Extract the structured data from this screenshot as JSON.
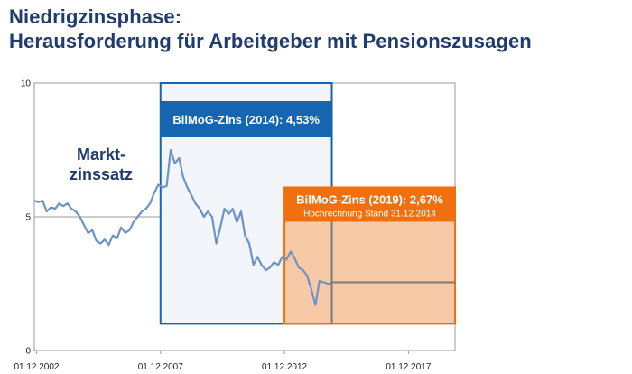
{
  "title_line1": "Niedrigzinsphase:",
  "title_line2": "Herausforderung für Arbeitgeber mit Pensionszusagen",
  "colors": {
    "title": "#1f3c6e",
    "line": "#6d93c6",
    "box2014_fill": "#f2f6fb",
    "box2014_border": "#1565b0",
    "box2019_fill": "#f8c9a6",
    "box2019_border": "#f07010",
    "projection_line": "#7a7a7a"
  },
  "chart_data": {
    "type": "line",
    "title": "",
    "xlabel": "",
    "ylabel": "",
    "ylim": [
      0,
      10
    ],
    "yticks": [
      0,
      5,
      10
    ],
    "ytick_labels": [
      "0",
      "5",
      "10"
    ],
    "xlim": [
      2002.83,
      2019.8
    ],
    "xticks": [
      2002.92,
      2007.92,
      2012.92,
      2017.92
    ],
    "xtick_labels": [
      "01.12.2002",
      "01.12.2007",
      "01.12.2012",
      "01.12.2017"
    ],
    "grid": "horizontal line at 5",
    "market_label": [
      "Markt-",
      "zinssatz"
    ],
    "series": [
      {
        "x": [
          2002.83,
          2003.0,
          2003.17,
          2003.33,
          2003.5,
          2003.67,
          2003.83,
          2004.0,
          2004.17,
          2004.33,
          2004.5,
          2004.67,
          2004.83,
          2005.0,
          2005.17,
          2005.33,
          2005.5,
          2005.67,
          2005.83,
          2006.0,
          2006.17,
          2006.33,
          2006.5,
          2006.67,
          2006.83,
          2007.0,
          2007.17,
          2007.33,
          2007.5,
          2007.67,
          2007.83,
          2008.0,
          2008.17,
          2008.33,
          2008.5,
          2008.67,
          2008.83,
          2009.0,
          2009.17,
          2009.33,
          2009.5,
          2009.67,
          2009.83,
          2010.0,
          2010.17,
          2010.33,
          2010.5,
          2010.67,
          2010.83,
          2011.0,
          2011.17,
          2011.33,
          2011.5,
          2011.67,
          2011.83,
          2012.0,
          2012.17,
          2012.33,
          2012.5,
          2012.67,
          2012.83,
          2013.0,
          2013.17,
          2013.33,
          2013.5,
          2013.67,
          2013.83,
          2014.0,
          2014.17,
          2014.33,
          2014.5,
          2014.67,
          2014.83
        ],
        "values": [
          5.6,
          5.55,
          5.6,
          5.2,
          5.35,
          5.3,
          5.5,
          5.4,
          5.5,
          5.3,
          5.2,
          5.0,
          4.7,
          4.4,
          4.5,
          4.1,
          4.0,
          4.15,
          3.95,
          4.3,
          4.2,
          4.6,
          4.4,
          4.5,
          4.8,
          5.0,
          5.2,
          5.3,
          5.5,
          5.9,
          6.2,
          6.1,
          6.15,
          7.5,
          7.0,
          7.2,
          6.5,
          6.1,
          5.8,
          5.5,
          5.3,
          5.0,
          5.2,
          5.0,
          4.0,
          4.6,
          5.3,
          5.1,
          5.3,
          4.8,
          5.2,
          4.3,
          4.0,
          3.2,
          3.5,
          3.2,
          3.0,
          3.1,
          3.3,
          3.2,
          3.5,
          3.4,
          3.7,
          3.45,
          3.1,
          3.0,
          2.8,
          2.3,
          1.7,
          2.6,
          2.55,
          2.5,
          2.5
        ]
      }
    ],
    "boxes": [
      {
        "label": "BilMoG-Zins (2014): 4,53%",
        "x_from": 2007.92,
        "x_to": 2014.83,
        "y_from": 1.0,
        "y_top": 10.0
      },
      {
        "label": "BilMoG-Zins (2019): 2,67%",
        "sublabel": "Hochrechnung Stand 31.12.2014",
        "x_from": 2012.92,
        "x_to": 2019.8,
        "y_from": 1.0,
        "y_top": 6.1
      }
    ],
    "projection": {
      "x_divider": 2014.83,
      "x_from": 2014.83,
      "x_to": 2019.8,
      "value": 2.55
    }
  }
}
